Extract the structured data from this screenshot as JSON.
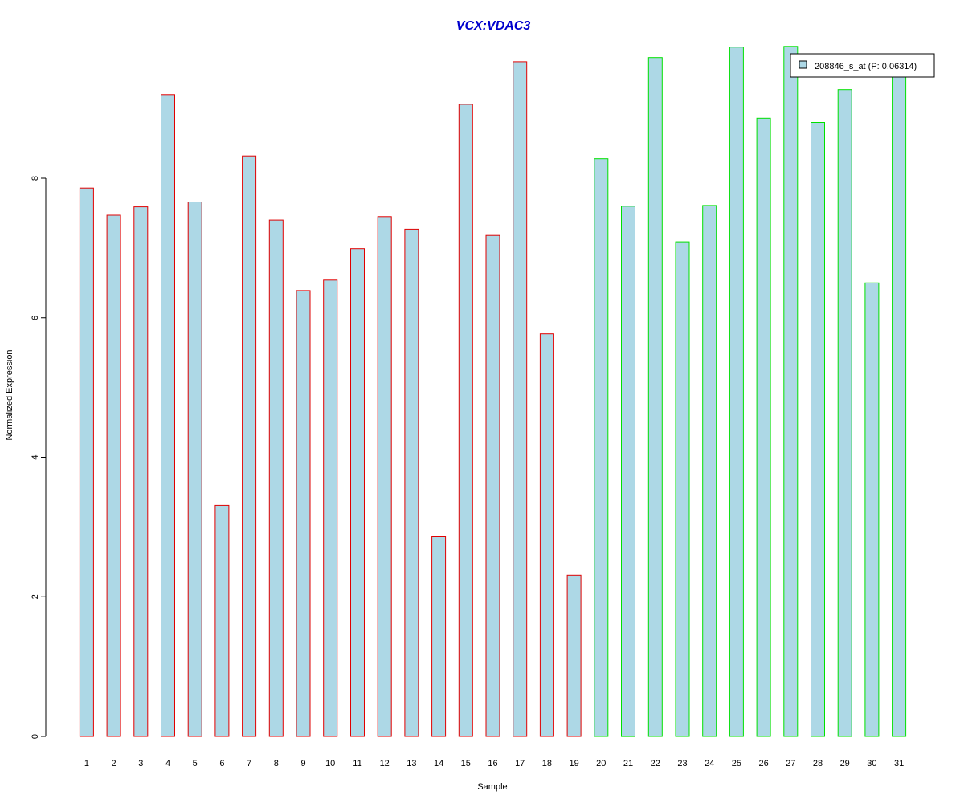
{
  "chart_data": {
    "type": "bar",
    "title": "VCX:VDAC3",
    "xlabel": "Sample",
    "ylabel": "Normalized Expression",
    "categories": [
      "1",
      "2",
      "3",
      "4",
      "5",
      "6",
      "7",
      "8",
      "9",
      "10",
      "11",
      "12",
      "13",
      "14",
      "15",
      "16",
      "17",
      "18",
      "19",
      "20",
      "21",
      "22",
      "23",
      "24",
      "25",
      "26",
      "27",
      "28",
      "29",
      "30",
      "31"
    ],
    "series": [
      {
        "name": "208846_s_at (P: 0.06314)",
        "values": [
          7.86,
          7.47,
          7.59,
          9.2,
          7.66,
          3.31,
          8.32,
          7.4,
          6.39,
          6.54,
          6.99,
          7.45,
          7.27,
          2.86,
          9.06,
          7.18,
          9.67,
          5.77,
          2.31,
          8.28,
          7.6,
          9.73,
          7.09,
          7.61,
          9.88,
          8.86,
          9.89,
          8.8,
          9.27,
          6.5,
          9.66
        ]
      }
    ],
    "groups": [
      {
        "from": 1,
        "to": 19,
        "border_color": "#e00000"
      },
      {
        "from": 20,
        "to": 31,
        "border_color": "#00e000"
      }
    ],
    "bar_fill_color": "#add8e6",
    "title_color": "#0000cd",
    "y_ticks": [
      0,
      2,
      4,
      6,
      8
    ],
    "ylim": [
      0,
      9.9
    ],
    "grid": false,
    "legend_position": "top-right"
  }
}
